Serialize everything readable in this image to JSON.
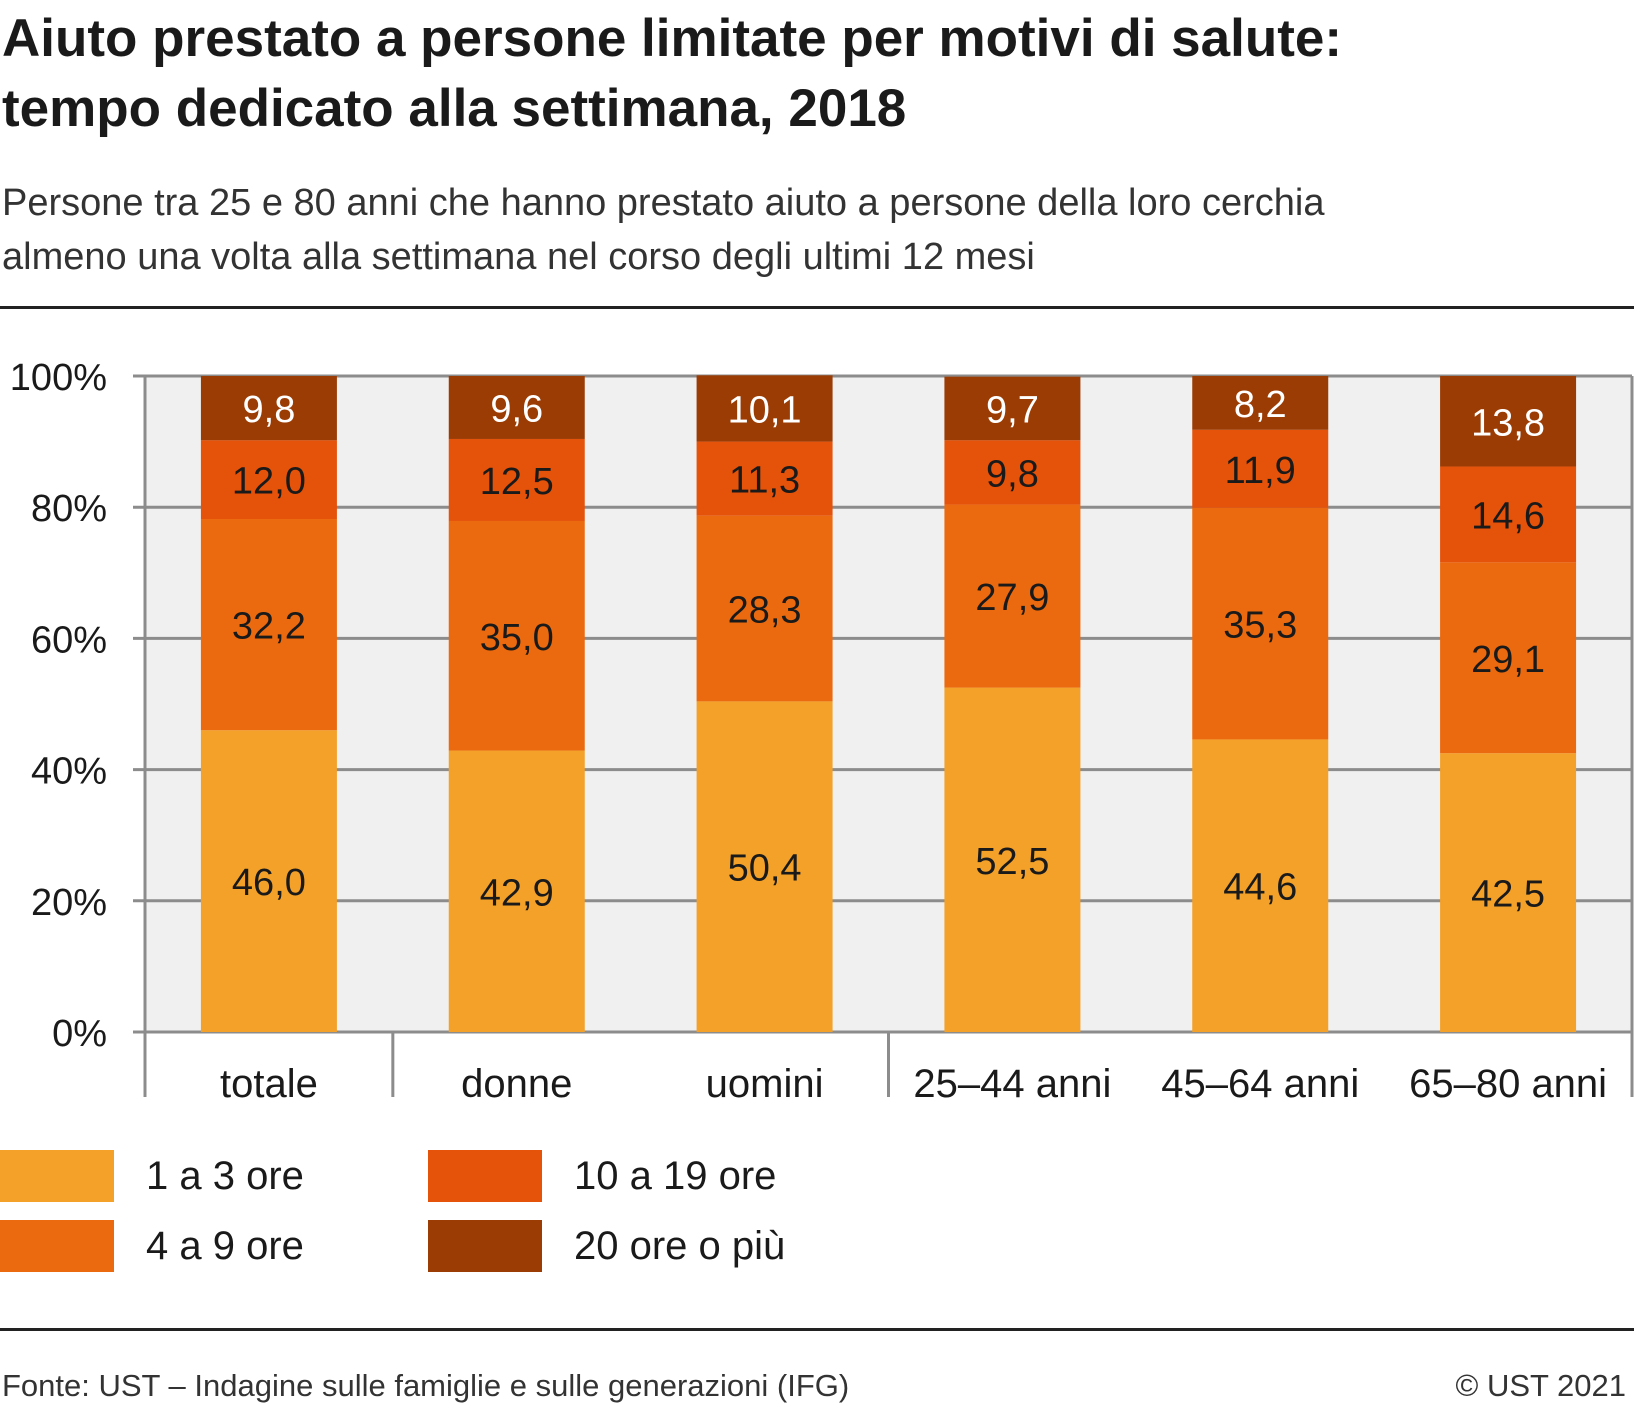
{
  "header": {
    "title_line1": "Aiuto prestato a persone limitate per motivi di salute:",
    "title_line2": "tempo dedicato alla settimana, 2018",
    "subtitle_line1": "Persone tra 25 e 80 anni che hanno prestato aiuto a persone della loro cerchia",
    "subtitle_line2": "almeno una volta alla settimana nel corso degli ultimi 12 mesi"
  },
  "footer": {
    "source": "Fonte: UST – Indagine sulle famiglie e sulle generazioni (IFG)",
    "copyright": "© UST 2021"
  },
  "chart_data": {
    "type": "bar",
    "stacked": true,
    "orientation": "vertical",
    "categories": [
      "totale",
      "donne",
      "uomini",
      "25–44 anni",
      "45–64 anni",
      "65–80 anni"
    ],
    "series": [
      {
        "name": "1 a 3 ore",
        "color": "#f4a12a",
        "values": [
          46.0,
          42.9,
          50.4,
          52.5,
          44.6,
          42.5
        ],
        "labels": [
          "46,0",
          "42,9",
          "50,4",
          "52,5",
          "44,6",
          "42,5"
        ]
      },
      {
        "name": "4 a 9 ore",
        "color": "#ec6a0f",
        "values": [
          32.2,
          35.0,
          28.3,
          27.9,
          35.3,
          29.1
        ],
        "labels": [
          "32,2",
          "35,0",
          "28,3",
          "27,9",
          "35,3",
          "29,1"
        ]
      },
      {
        "name": "10 a 19 ore",
        "color": "#e5520a",
        "values": [
          12.0,
          12.5,
          11.3,
          9.8,
          11.9,
          14.6
        ],
        "labels": [
          "12,0",
          "12,5",
          "11,3",
          "9,8",
          "11,9",
          "14,6"
        ]
      },
      {
        "name": "20 ore o più",
        "color": "#9c3c05",
        "values": [
          9.8,
          9.6,
          10.1,
          9.7,
          8.2,
          13.8
        ],
        "labels": [
          "9,8",
          "9,6",
          "10,1",
          "9,7",
          "8,2",
          "13,8"
        ]
      }
    ],
    "ylim": [
      0,
      100
    ],
    "yticks": [
      0,
      20,
      40,
      60,
      80,
      100
    ],
    "ytick_labels": [
      "0%",
      "20%",
      "40%",
      "60%",
      "80%",
      "100%"
    ],
    "grid": true,
    "legend_position": "bottom",
    "plot_background": "#f0f0f0"
  }
}
